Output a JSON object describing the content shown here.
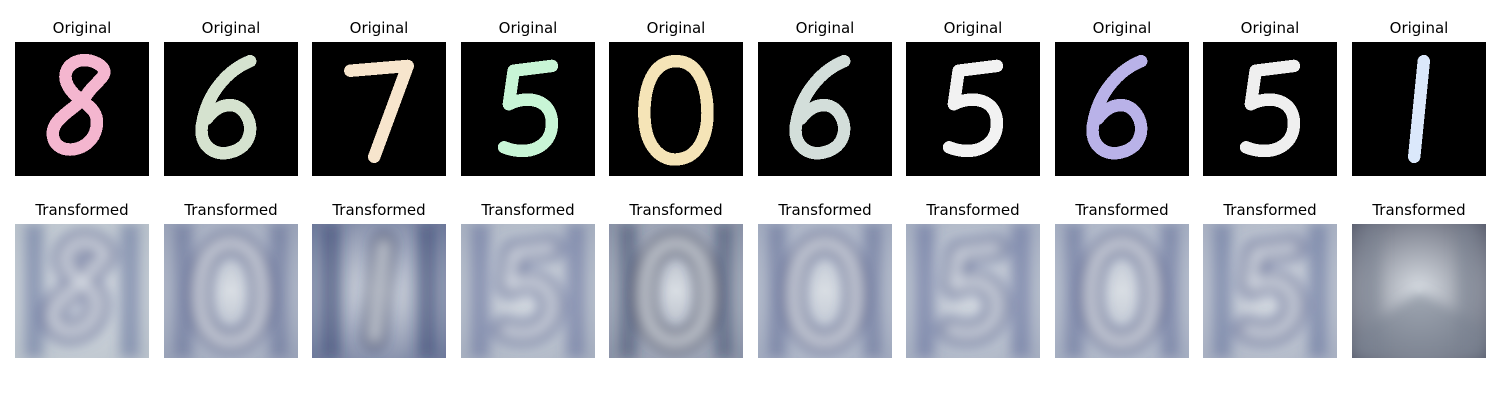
{
  "rows": [
    {
      "kind": "original",
      "items": [
        {
          "caption": "Original",
          "digit": "8",
          "color": "#f4b6cf"
        },
        {
          "caption": "Original",
          "digit": "6",
          "color": "#d5e2cf"
        },
        {
          "caption": "Original",
          "digit": "7",
          "color": "#f7e5cd"
        },
        {
          "caption": "Original",
          "digit": "5",
          "color": "#c8f5d6"
        },
        {
          "caption": "Original",
          "digit": "0",
          "color": "#f5e4b7"
        },
        {
          "caption": "Original",
          "digit": "6",
          "color": "#d3deda"
        },
        {
          "caption": "Original",
          "digit": "5",
          "color": "#f2f2f2"
        },
        {
          "caption": "Original",
          "digit": "6",
          "color": "#b9b2e8"
        },
        {
          "caption": "Original",
          "digit": "5",
          "color": "#efefef"
        },
        {
          "caption": "Original",
          "digit": "1",
          "color": "#dbe8fb"
        }
      ]
    },
    {
      "kind": "transformed",
      "items": [
        {
          "caption": "Transformed",
          "digit": "8",
          "bg": "#b9c2cb",
          "ink": "#4c5a8f"
        },
        {
          "caption": "Transformed",
          "digit": "0",
          "bg": "#9aa3b8",
          "ink": "#4a5688"
        },
        {
          "caption": "Transformed",
          "digit": "1",
          "bg": "#6f7a9b",
          "ink": "#263767"
        },
        {
          "caption": "Transformed",
          "digit": "5",
          "bg": "#a7b0c0",
          "ink": "#4d5b90"
        },
        {
          "caption": "Transformed",
          "digit": "0",
          "bg": "#8d95a8",
          "ink": "#26305a"
        },
        {
          "caption": "Transformed",
          "digit": "0",
          "bg": "#a2abbf",
          "ink": "#4b5688"
        },
        {
          "caption": "Transformed",
          "digit": "5",
          "bg": "#a6afc1",
          "ink": "#4b588d"
        },
        {
          "caption": "Transformed",
          "digit": "0",
          "bg": "#a5aec1",
          "ink": "#4a568a"
        },
        {
          "caption": "Transformed",
          "digit": "5",
          "bg": "#a9b1c2",
          "ink": "#4c5a8d"
        },
        {
          "caption": "Transformed",
          "digit": "",
          "bg": "#5e6272",
          "ink": "#7b8392"
        }
      ]
    }
  ]
}
